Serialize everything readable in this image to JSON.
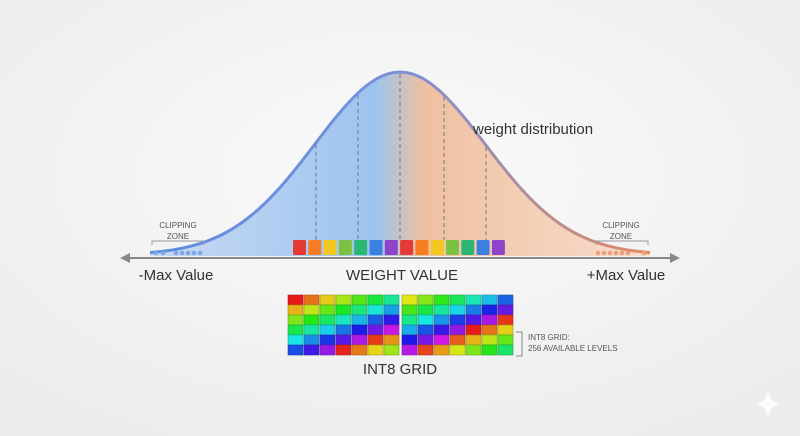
{
  "curve_label": "weight distribution",
  "clipping_zones": [
    {
      "lines": [
        "CLIPPING",
        "ZONE"
      ]
    },
    {
      "lines": [
        "CLIPPING",
        "ZONE"
      ]
    }
  ],
  "axis": {
    "left": "-Max Value",
    "center": "WEIGHT VALUE",
    "right": "+Max Value"
  },
  "grid": {
    "note": [
      "INT8 GRID:",
      "256 AVAILABLE LEVELS"
    ],
    "title": "INT8 GRID"
  }
}
